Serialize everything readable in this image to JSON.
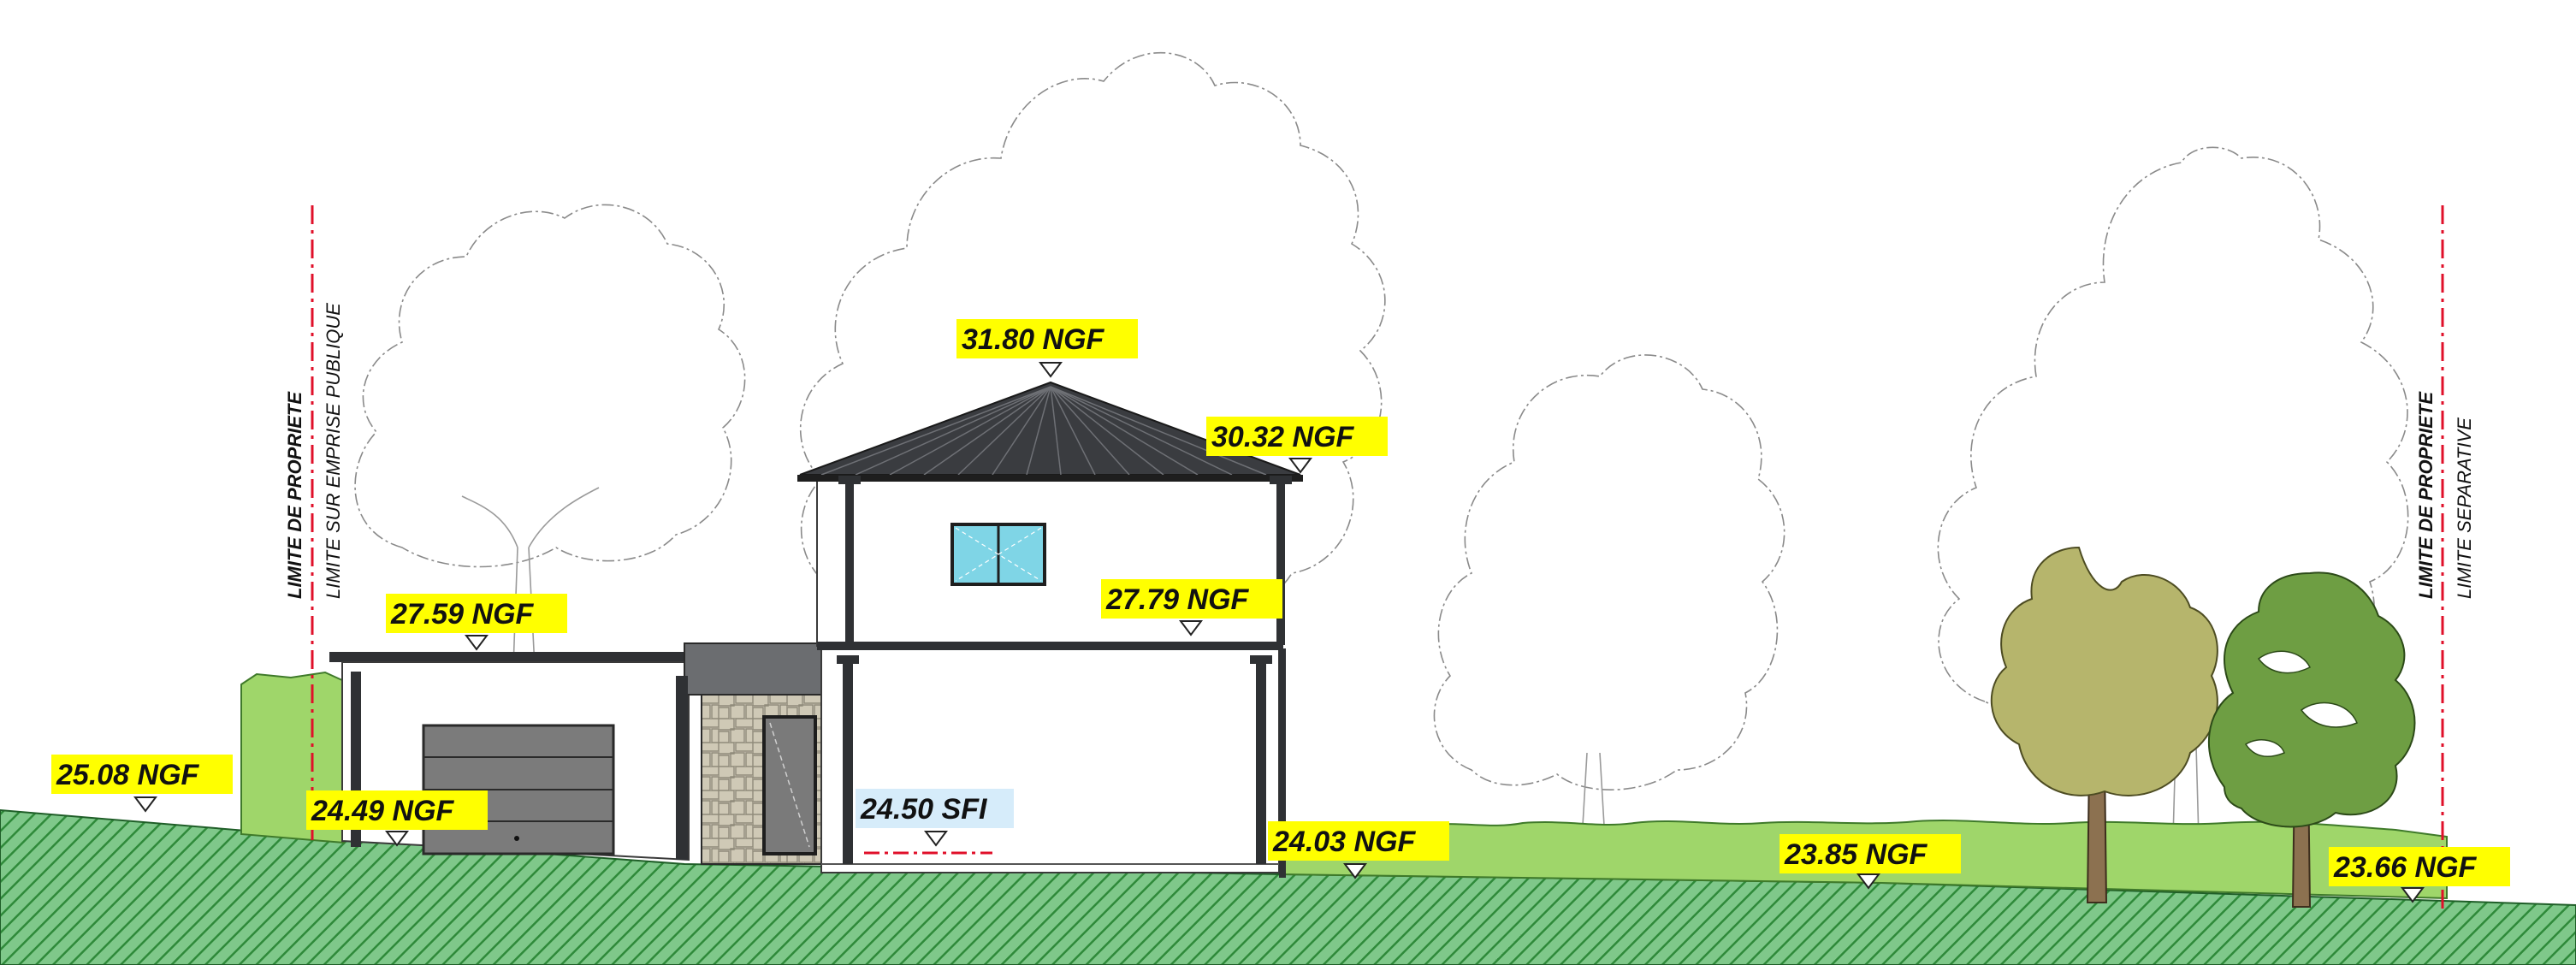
{
  "colors": {
    "ground_hatch": "#2f8a3a",
    "ground_fill": "#7fc88a",
    "hedge": "#9fd66a",
    "roof": "#3a3c40",
    "wall": "#ffffff",
    "label_highlight": "#ffff00",
    "label_highlight_sfi": "#d6ecfa",
    "property_line": "#e0102a",
    "tree_olive": "#b6b56c",
    "tree_green": "#6e9e43"
  },
  "property_limits": {
    "left": {
      "title": "LIMITE DE PROPRIETE",
      "subtitle": "LIMITE SUR EMPRISE PUBLIQUE"
    },
    "right": {
      "title": "LIMITE DE PROPRIETE",
      "subtitle": "LIMITE SEPARATIVE"
    }
  },
  "levels": {
    "ridge": "31.80 NGF",
    "eave_upper": "30.32 NGF",
    "eave_mid": "27.79 NGF",
    "garage_roof": "27.59 NGF",
    "ground_far_left": "25.08 NGF",
    "ground_garage": "24.49 NGF",
    "finished_floor": "24.50 SFI",
    "ground_house_right": "24.03 NGF",
    "ground_garden": "23.85 NGF",
    "ground_far_right": "23.66 NGF"
  },
  "icons": {
    "level_marker": "triangle-down-icon",
    "window": "window-icon",
    "garage_door": "garage-door-icon",
    "entry_door": "door-icon",
    "downpipe": "downpipe-icon"
  }
}
